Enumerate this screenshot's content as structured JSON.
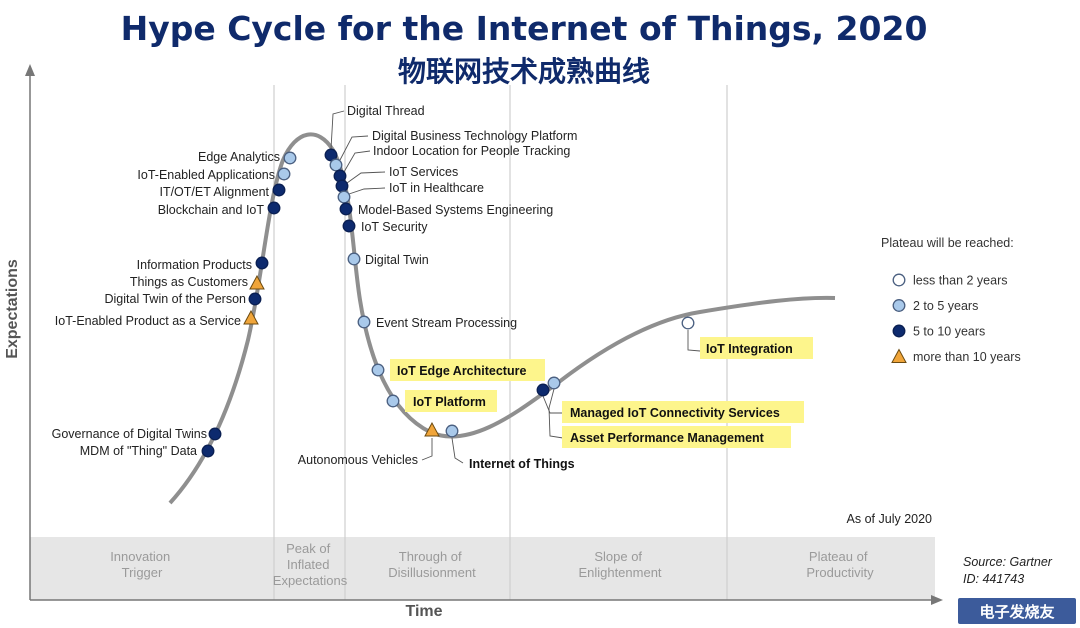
{
  "title": "Hype Cycle for the Internet of Things, 2020",
  "subtitle": "物联网技术成熟曲线",
  "chart_data": {
    "type": "hype-cycle",
    "ylabel": "Expectations",
    "xlabel": "Time",
    "phases": [
      {
        "lines": [
          "Innovation",
          "Trigger"
        ]
      },
      {
        "lines": [
          "Peak of",
          "Inflated",
          "Expectations"
        ]
      },
      {
        "lines": [
          "Through of",
          "Disillusionment"
        ]
      },
      {
        "lines": [
          "Slope of",
          "Enlightenment"
        ]
      },
      {
        "lines": [
          "Plateau of",
          "Productivity"
        ]
      }
    ],
    "legend": {
      "title": "Plateau will be reached:",
      "items": [
        {
          "key": "lt2",
          "label": "less than 2 years",
          "shape": "circle",
          "color": "#ffffff"
        },
        {
          "key": "2to5",
          "label": "2 to 5 years",
          "shape": "circle",
          "color": "#a9c9ea"
        },
        {
          "key": "5to10",
          "label": "5 to 10 years",
          "shape": "circle",
          "color": "#0d2a6e"
        },
        {
          "key": "gt10",
          "label": "more than 10 years",
          "shape": "triangle",
          "color": "#f0a53a"
        }
      ]
    },
    "technologies": [
      {
        "name": "Governance of Digital Twins",
        "category": "5to10",
        "highlight": false
      },
      {
        "name": "MDM of \"Thing\" Data",
        "category": "5to10",
        "highlight": false
      },
      {
        "name": "IoT-Enabled Product as a Service",
        "category": "gt10",
        "highlight": false
      },
      {
        "name": "Digital Twin of the Person",
        "category": "5to10",
        "highlight": false
      },
      {
        "name": "Things as Customers",
        "category": "gt10",
        "highlight": false
      },
      {
        "name": "Information Products",
        "category": "5to10",
        "highlight": false
      },
      {
        "name": "Blockchain and IoT",
        "category": "5to10",
        "highlight": false
      },
      {
        "name": "IT/OT/ET Alignment",
        "category": "5to10",
        "highlight": false
      },
      {
        "name": "IoT-Enabled Applications",
        "category": "2to5",
        "highlight": false
      },
      {
        "name": "Edge Analytics",
        "category": "2to5",
        "highlight": false
      },
      {
        "name": "Digital Thread",
        "category": "5to10",
        "highlight": false
      },
      {
        "name": "Digital Business Technology Platform",
        "category": "2to5",
        "highlight": false
      },
      {
        "name": "Indoor Location for People Tracking",
        "category": "5to10",
        "highlight": false
      },
      {
        "name": "IoT Services",
        "category": "5to10",
        "highlight": false
      },
      {
        "name": "IoT in Healthcare",
        "category": "2to5",
        "highlight": false
      },
      {
        "name": "Model-Based Systems Engineering",
        "category": "5to10",
        "highlight": false
      },
      {
        "name": "IoT Security",
        "category": "5to10",
        "highlight": false
      },
      {
        "name": "Digital Twin",
        "category": "2to5",
        "highlight": false
      },
      {
        "name": "Event Stream Processing",
        "category": "2to5",
        "highlight": false
      },
      {
        "name": "IoT Edge Architecture",
        "category": "2to5",
        "highlight": true
      },
      {
        "name": "IoT Platform",
        "category": "2to5",
        "highlight": true
      },
      {
        "name": "Autonomous Vehicles",
        "category": "gt10",
        "highlight": false
      },
      {
        "name": "Internet of Things",
        "category": "2to5",
        "highlight": true
      },
      {
        "name": "Managed IoT Connectivity Services",
        "category": "5to10",
        "highlight": true
      },
      {
        "name": "Asset Performance Management",
        "category": "2to5",
        "highlight": true
      },
      {
        "name": "IoT Integration",
        "category": "lt2",
        "highlight": true
      }
    ],
    "as_of": "As of July 2020"
  },
  "source": {
    "line1": "Source: Gartner",
    "line2": "ID: 441743"
  },
  "watermark": "电子发烧友"
}
